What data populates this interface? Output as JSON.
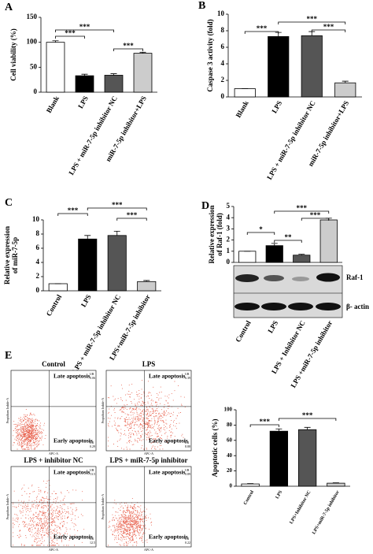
{
  "panels": [
    "A",
    "B",
    "C",
    "D",
    "E"
  ],
  "chart_data": [
    {
      "type": "bar",
      "ylabel": [
        "Cell viability (%)"
      ],
      "categories": [
        "Blank",
        "LPS",
        "LPS + miR-7-5p inhibitor NC",
        "miR-7-5p inhibitor+LPS"
      ],
      "values": [
        100,
        33,
        34,
        78
      ],
      "errors": [
        3,
        3,
        3,
        2
      ],
      "colors": [
        "#ffffff",
        "#000000",
        "#555555",
        "#cccccc"
      ],
      "ylim": [
        0,
        150
      ],
      "yticks": [
        0,
        50,
        100,
        150
      ],
      "annotations": [
        "***",
        "***",
        "***"
      ]
    },
    {
      "type": "bar",
      "ylabel": [
        "Caspase 3 activity (fold)"
      ],
      "categories": [
        "Blank",
        "LPS",
        "LPS + miR-7-5p inhibitor NC",
        "miR-7-5p inhibitor+LPS"
      ],
      "values": [
        1,
        7.3,
        7.4,
        1.7
      ],
      "errors": [
        0,
        0.5,
        0.5,
        0.2
      ],
      "colors": [
        "#ffffff",
        "#000000",
        "#555555",
        "#cccccc"
      ],
      "ylim": [
        0,
        10
      ],
      "yticks": [
        0,
        2,
        4,
        6,
        8,
        10
      ],
      "annotations": [
        "***",
        "***",
        "***"
      ]
    },
    {
      "type": "bar",
      "ylabel": [
        "Relative expression",
        "of miR-7-5p"
      ],
      "categories": [
        "Control",
        "LPS",
        "LPS + miR-7-5p inhibitor NC",
        "LPS+miR-7-5p inhibitor"
      ],
      "values": [
        1,
        7.3,
        7.8,
        1.3
      ],
      "errors": [
        0,
        0.5,
        0.6,
        0.15
      ],
      "colors": [
        "#ffffff",
        "#000000",
        "#555555",
        "#cccccc"
      ],
      "ylim": [
        0,
        10
      ],
      "yticks": [
        0,
        2,
        4,
        6,
        8,
        10
      ],
      "annotations": [
        "***",
        "***",
        "***"
      ]
    },
    {
      "type": "bar",
      "ylabel": [
        "Relative expression",
        "of Raf-1 (fold)"
      ],
      "categories": [
        "Control",
        "LPS",
        "LPS + Inhibitor NC",
        "LPS +miR-7-5p inhibitor"
      ],
      "values": [
        1,
        1.5,
        0.65,
        3.8
      ],
      "errors": [
        0,
        0.2,
        0.08,
        0.15
      ],
      "colors": [
        "#ffffff",
        "#000000",
        "#555555",
        "#cccccc"
      ],
      "ylim": [
        0,
        5
      ],
      "yticks": [
        0,
        1,
        2,
        3,
        4,
        5
      ],
      "annotations": [
        "*",
        "**",
        "***",
        "***"
      ]
    },
    {
      "type": "bar",
      "ylabel": [
        "Apoptotic cells (%)"
      ],
      "categories": [
        "Control",
        "LPS",
        "LPS+Inhibitor NC",
        "LPS+miR-7-5p inhibitor"
      ],
      "values": [
        3,
        72,
        74,
        4
      ],
      "errors": [
        0.5,
        3,
        3,
        0.5
      ],
      "colors": [
        "#ffffff",
        "#000000",
        "#555555",
        "#cccccc"
      ],
      "ylim": [
        0,
        100
      ],
      "yticks": [
        0,
        20,
        40,
        60,
        80,
        100
      ],
      "annotations": [
        "***",
        "***"
      ]
    }
  ],
  "blot_labels": [
    "Raf-1",
    "β- actin"
  ],
  "flow_axes": {
    "x": "APC-A",
    "y": "Propidium Iodide-A"
  },
  "flow_plots": [
    {
      "title": "Control",
      "late": "Late apoptosis",
      "early": "Early apoptosis",
      "ur": "UR",
      "ur_value": "0.06",
      "lr": "LR",
      "lr_value": "0.29"
    },
    {
      "title": "LPS",
      "late": "Late apoptosis",
      "early": "Early apoptosis",
      "ur": "UR",
      "ur_value": "6.39",
      "lr": "LR",
      "lr_value": "8.88"
    },
    {
      "title": "LPS + inhibitor NC",
      "late": "Late apoptosis",
      "early": "Early apoptosis",
      "ur": "UR",
      "ur_value": "13.5",
      "lr": "LR",
      "lr_value": "12.5"
    },
    {
      "title": "LPS + miR-7-5p inhibitor",
      "late": "Late apoptosis",
      "early": "Early apoptosis",
      "ur": "UR",
      "ur_value": "0.89",
      "lr": "LR",
      "lr_value": "0.22"
    }
  ]
}
